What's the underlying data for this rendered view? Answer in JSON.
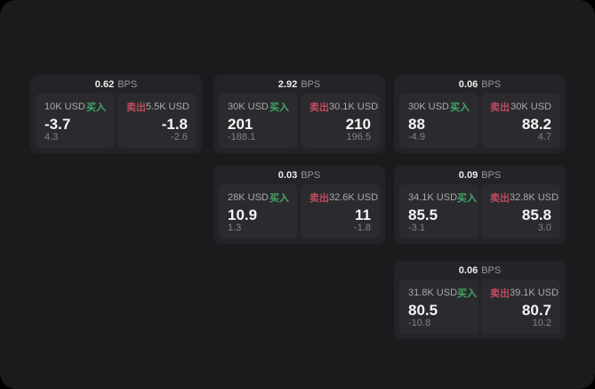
{
  "colors": {
    "page_bg": "#000000",
    "panel_bg": "#1b1b1d",
    "card_bg": "#242428",
    "tile_bg": "#2b2b2f",
    "text_primary": "#f5f5f5",
    "text_secondary": "#a9aaac",
    "text_muted": "#828287",
    "buy_green": "#43a567",
    "sell_red": "#c14a5e"
  },
  "labels": {
    "bps_unit": "BPS",
    "buy": "买入",
    "sell": "卖出"
  },
  "cards": [
    {
      "bps": "0.62",
      "buy": {
        "amount": "10K USD",
        "price": "-3.7",
        "delta": "4.3"
      },
      "sell": {
        "amount": "5.5K USD",
        "price": "-1.8",
        "delta": "-2.6"
      }
    },
    {
      "bps": "2.92",
      "buy": {
        "amount": "30K USD",
        "price": "201",
        "delta": "-188.1"
      },
      "sell": {
        "amount": "30.1K USD",
        "price": "210",
        "delta": "196.5"
      }
    },
    {
      "bps": "0.06",
      "buy": {
        "amount": "30K USD",
        "price": "88",
        "delta": "-4.9"
      },
      "sell": {
        "amount": "30K USD",
        "price": "88.2",
        "delta": "4.7"
      }
    },
    {
      "bps": "0.03",
      "buy": {
        "amount": "28K USD",
        "price": "10.9",
        "delta": "1.3"
      },
      "sell": {
        "amount": "32.6K USD",
        "price": "11",
        "delta": "-1.8"
      }
    },
    {
      "bps": "0.09",
      "buy": {
        "amount": "34.1K USD",
        "price": "85.5",
        "delta": "-3.1"
      },
      "sell": {
        "amount": "32.8K USD",
        "price": "85.8",
        "delta": "3.0"
      }
    },
    {
      "bps": "0.06",
      "buy": {
        "amount": "31.8K USD",
        "price": "80.5",
        "delta": "-10.8"
      },
      "sell": {
        "amount": "39.1K USD",
        "price": "80.7",
        "delta": "10.2"
      }
    }
  ]
}
